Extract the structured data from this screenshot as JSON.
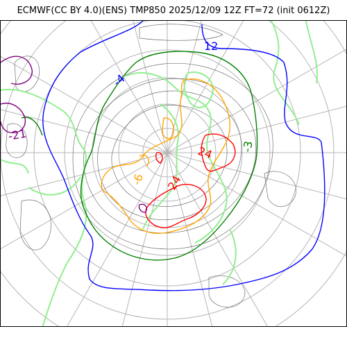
{
  "title": "ECMWF(CC BY 4.0)(ENS) TMP850 2025/12/09 12Z FT=72 (init 0612Z)",
  "map": {
    "projection": "north-polar-stereographic",
    "variable": "TMP850",
    "contour_labels": [
      {
        "text": "12",
        "color": "#0000ff"
      },
      {
        "text": "24",
        "color": "#ff0000"
      },
      {
        "text": "-6",
        "color": "#ffa500"
      },
      {
        "text": "24",
        "color": "#ff0000"
      },
      {
        "text": "-3",
        "color": "#008000"
      },
      {
        "text": "-21",
        "color": "#800080"
      },
      {
        "text": "-4",
        "color": "#0000ff"
      }
    ],
    "isotherm_colors": {
      "0C": "#0000ff",
      "-6C": "#008000",
      "-12C": "#ffa500",
      "-18C": "#ff0000",
      "-24C": "#800080",
      "positive": "#90ee90",
      "minor": "#808080",
      "graticule": "#b0b0b0"
    }
  }
}
